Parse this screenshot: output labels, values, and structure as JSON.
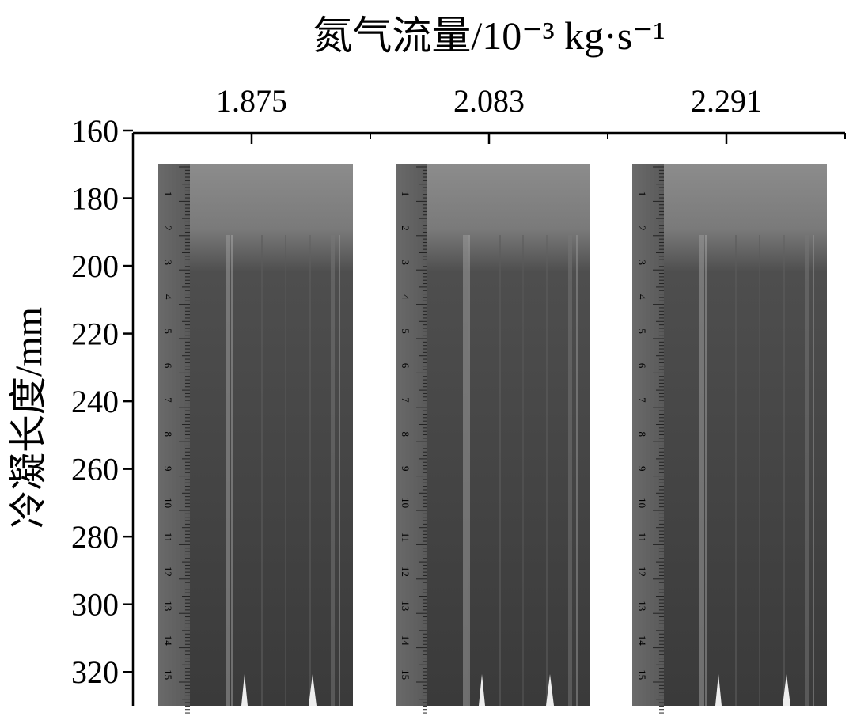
{
  "chart_data": {
    "type": "image",
    "title": "氮气流量/10⁻³ kg·s⁻¹",
    "ylabel": "冷凝长度/mm",
    "categories": [
      "1.875",
      "2.083",
      "2.291"
    ],
    "ylim": [
      160,
      330
    ],
    "yticks": [
      160,
      180,
      200,
      220,
      240,
      260,
      280,
      300,
      320
    ],
    "ruler_labels": [
      1,
      2,
      3,
      4,
      5,
      6,
      7,
      8,
      9,
      10,
      11,
      12,
      13,
      14,
      15
    ]
  }
}
